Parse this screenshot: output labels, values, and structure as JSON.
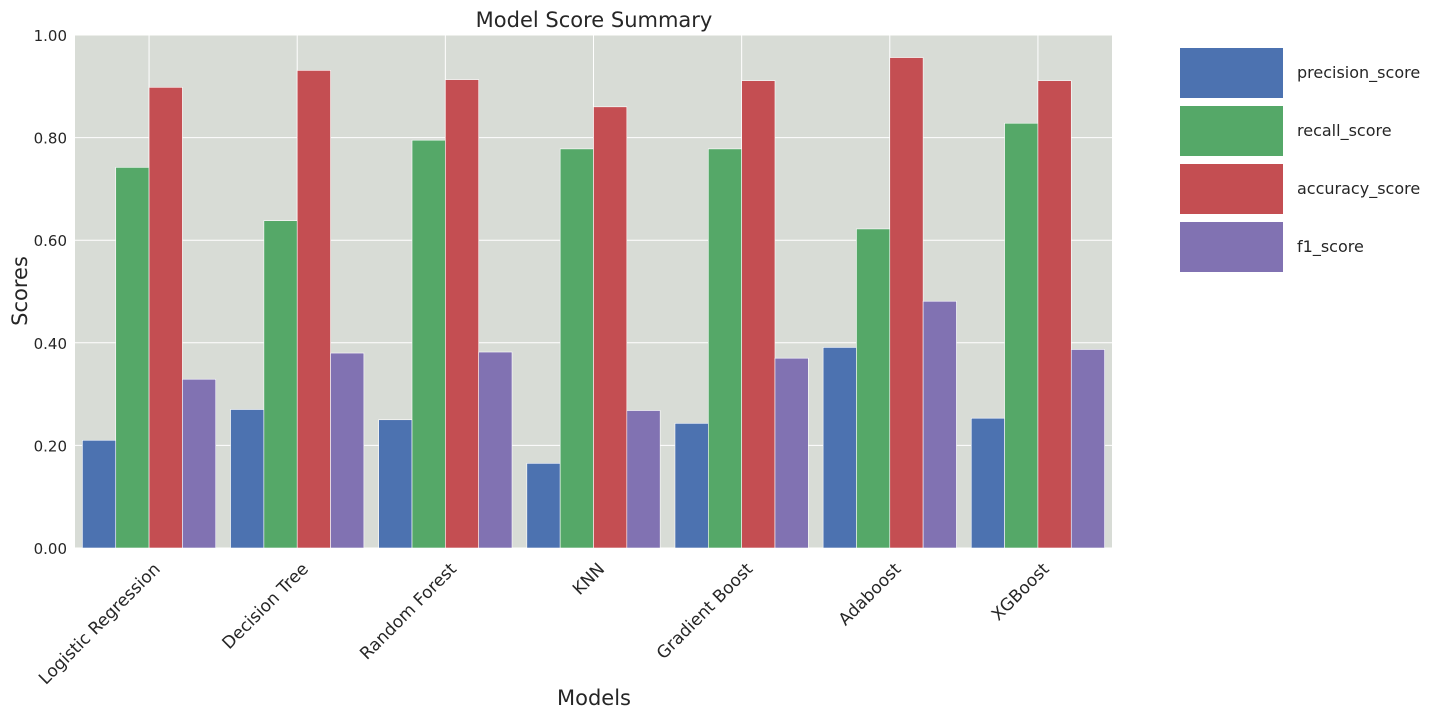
{
  "chart_data": {
    "type": "bar",
    "title": "Model Score Summary",
    "xlabel": "Models",
    "ylabel": "Scores",
    "ylim": [
      0,
      1.0
    ],
    "yticks": [
      "0.00",
      "0.20",
      "0.40",
      "0.60",
      "0.80",
      "1.00"
    ],
    "ytick_values": [
      0,
      0.2,
      0.4,
      0.6,
      0.8,
      1.0
    ],
    "categories": [
      "Logistic Regression",
      "Decision Tree",
      "Random Forest",
      "KNN",
      "Gradient Boost",
      "Adaboost",
      "XGBoost"
    ],
    "series": [
      {
        "name": "precision_score",
        "color": "#4c72b0",
        "values": [
          0.21,
          0.27,
          0.25,
          0.165,
          0.243,
          0.391,
          0.253
        ]
      },
      {
        "name": "recall_score",
        "color": "#55a868",
        "values": [
          0.742,
          0.638,
          0.795,
          0.778,
          0.778,
          0.622,
          0.828
        ]
      },
      {
        "name": "accuracy_score",
        "color": "#c44e52",
        "values": [
          0.898,
          0.931,
          0.913,
          0.86,
          0.911,
          0.956,
          0.911
        ]
      },
      {
        "name": "f1_score",
        "color": "#8172b2",
        "values": [
          0.329,
          0.38,
          0.382,
          0.268,
          0.37,
          0.481,
          0.387
        ]
      }
    ],
    "grid": true,
    "legend": "outside-top-right",
    "plot_background": "#d8dcd6"
  }
}
